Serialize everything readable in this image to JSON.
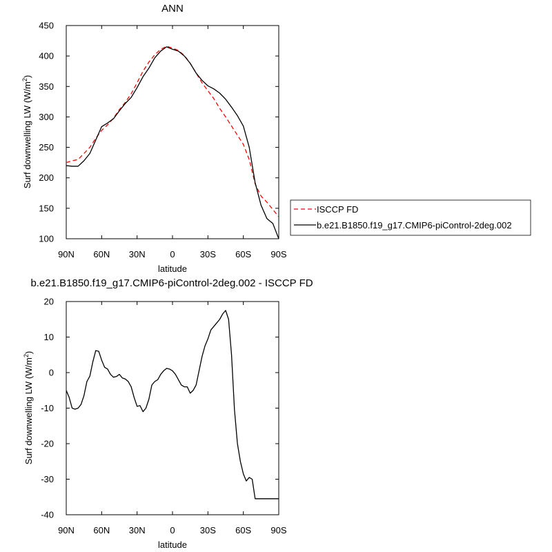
{
  "chart_data": [
    {
      "type": "line",
      "title": "ANN",
      "xlabel": "latitude",
      "ylabel": "Surf downwelling LW (W/m",
      "ylabel_sup": "2",
      "ylabel_end": ")",
      "xlim": [
        90,
        -90
      ],
      "ylim": [
        100,
        450
      ],
      "x_ticks": [
        90,
        60,
        30,
        0,
        -30,
        -60,
        -90
      ],
      "x_tick_labels": [
        "90N",
        "60N",
        "30N",
        "0",
        "30S",
        "60S",
        "90S"
      ],
      "y_ticks": [
        100,
        150,
        200,
        250,
        300,
        350,
        400,
        450
      ],
      "y_tick_labels": [
        "100",
        "150",
        "200",
        "250",
        "300",
        "350",
        "400",
        "450"
      ],
      "grid": false,
      "legend": {
        "position": "right",
        "entries": [
          {
            "label": "ISCCP FD",
            "color": "#ff0000",
            "style": "dashed"
          },
          {
            "label": "b.e21.B1850.f19_g17.CMIP6-piControl-2deg.002",
            "color": "#000000",
            "style": "solid"
          }
        ]
      },
      "series": [
        {
          "name": "ISCCP FD",
          "color": "#ff0000",
          "style": "dashed",
          "x": [
            90,
            85,
            80,
            75,
            70,
            65,
            60,
            55,
            50,
            45,
            40,
            35,
            30,
            25,
            20,
            15,
            10,
            5,
            0,
            -5,
            -10,
            -15,
            -20,
            -25,
            -30,
            -35,
            -40,
            -45,
            -50,
            -55,
            -60,
            -65,
            -70,
            -75,
            -80,
            -85,
            -90
          ],
          "values": [
            225,
            228,
            230,
            240,
            250,
            265,
            278,
            287,
            298,
            312,
            324,
            338,
            356,
            375,
            390,
            402,
            411,
            416,
            413,
            409,
            401,
            388,
            372,
            356,
            343,
            330,
            314,
            300,
            285,
            270,
            255,
            230,
            190,
            170,
            160,
            148,
            136
          ]
        },
        {
          "name": "b.e21.B1850.f19_g17.CMIP6-piControl-2deg.002",
          "color": "#000000",
          "style": "solid",
          "x": [
            90,
            85,
            80,
            75,
            70,
            65,
            60,
            55,
            50,
            45,
            40,
            35,
            30,
            25,
            20,
            15,
            10,
            5,
            0,
            -5,
            -10,
            -15,
            -20,
            -25,
            -30,
            -35,
            -40,
            -45,
            -50,
            -55,
            -60,
            -65,
            -70,
            -75,
            -80,
            -85,
            -90
          ],
          "values": [
            220,
            219,
            219,
            228,
            240,
            262,
            284,
            290,
            297,
            310,
            322,
            332,
            348,
            366,
            380,
            397,
            408,
            415,
            411,
            408,
            400,
            388,
            372,
            360,
            351,
            346,
            339,
            329,
            316,
            302,
            285,
            250,
            192,
            155,
            133,
            125,
            100
          ]
        }
      ]
    },
    {
      "type": "line",
      "title": "b.e21.B1850.f19_g17.CMIP6-piControl-2deg.002 - ISCCP FD",
      "xlabel": "latitude",
      "ylabel": "Surf downwelling LW (W/m",
      "ylabel_sup": "2",
      "ylabel_end": ")",
      "xlim": [
        90,
        -90
      ],
      "ylim": [
        -40,
        20
      ],
      "x_ticks": [
        90,
        60,
        30,
        0,
        -30,
        -60,
        -90
      ],
      "x_tick_labels": [
        "90N",
        "60N",
        "30N",
        "0",
        "30S",
        "60S",
        "90S"
      ],
      "y_ticks": [
        -40,
        -30,
        -20,
        -10,
        0,
        10,
        20
      ],
      "y_tick_labels": [
        "-40",
        "-30",
        "-20",
        "-10",
        "0",
        "10",
        "20"
      ],
      "grid": false,
      "series": [
        {
          "color": "#000000",
          "style": "solid",
          "x": [
            90,
            87.5,
            85,
            82.5,
            80,
            77.5,
            75,
            72.5,
            70,
            67.5,
            65,
            62.5,
            60,
            57.5,
            55,
            52.5,
            50,
            47.5,
            45,
            42.5,
            40,
            37.5,
            35,
            32.5,
            30,
            27.5,
            25,
            22.5,
            20,
            17.5,
            15,
            12.5,
            10,
            7.5,
            5,
            2.5,
            0,
            -2.5,
            -5,
            -7.5,
            -10,
            -12.5,
            -15,
            -17.5,
            -20,
            -22.5,
            -25,
            -27.5,
            -30,
            -32.5,
            -35,
            -37.5,
            -40,
            -42.5,
            -45,
            -47.5,
            -50,
            -52.5,
            -55,
            -57.5,
            -60,
            -62.5,
            -65,
            -67.5,
            -70,
            -72.5,
            -75,
            -77.5,
            -80,
            -82.5,
            -85,
            -87.5,
            -90
          ],
          "values": [
            -5,
            -7,
            -10,
            -10.3,
            -10,
            -9,
            -6.5,
            -2.5,
            -1,
            3,
            6.2,
            6,
            3.5,
            1.5,
            1,
            -0.5,
            -1.3,
            -1.1,
            -0.5,
            -1.5,
            -1.8,
            -2.5,
            -4,
            -7,
            -9.5,
            -9.3,
            -11,
            -10,
            -7.5,
            -3.5,
            -2.5,
            -2,
            -0.5,
            0.5,
            1.2,
            1,
            0.5,
            -0.5,
            -2,
            -3.5,
            -4,
            -4,
            -5.8,
            -5,
            -3.5,
            0.5,
            4.5,
            7.5,
            9.5,
            12,
            13,
            14,
            15,
            16.5,
            17.5,
            15,
            5,
            -10.5,
            -20,
            -25,
            -28.5,
            -30.5,
            -29.5,
            -30,
            -35.5,
            -35.5,
            -35.5,
            -35.5,
            -35.5,
            -35.5,
            -35.5,
            -35.5,
            -35.5
          ]
        }
      ]
    }
  ]
}
